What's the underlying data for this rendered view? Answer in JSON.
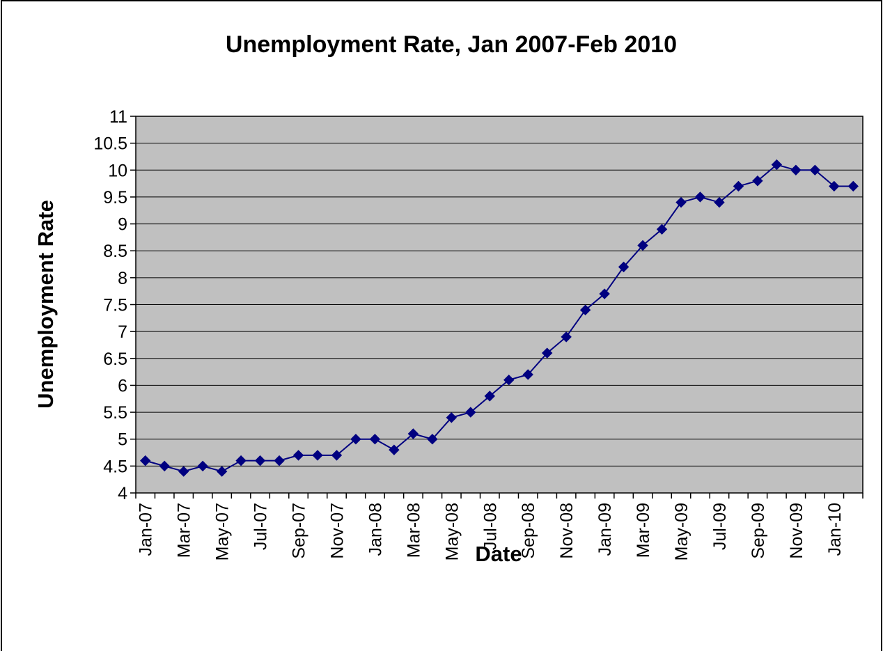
{
  "chart_data": {
    "type": "line",
    "title": "Unemployment Rate, Jan 2007-Feb 2010",
    "xlabel": "Date",
    "ylabel": "Unemployment Rate",
    "ylim": [
      4,
      11
    ],
    "yticks": [
      "4",
      "4.5",
      "5",
      "5.5",
      "6",
      "6.5",
      "7",
      "7.5",
      "8",
      "8.5",
      "9",
      "9.5",
      "10",
      "10.5",
      "11"
    ],
    "grid": true,
    "legend": "none",
    "colors": {
      "line": "#000080",
      "marker": "#000080",
      "plot_bg": "#C0C0C0",
      "grid": "#000000"
    },
    "x_tick_labels": [
      "Jan-07",
      "Mar-07",
      "May-07",
      "Jul-07",
      "Sep-07",
      "Nov-07",
      "Jan-08",
      "Mar-08",
      "May-08",
      "Jul-08",
      "Sep-08",
      "Nov-08",
      "Jan-09",
      "Mar-09",
      "May-09",
      "Jul-09",
      "Sep-09",
      "Nov-09",
      "Jan-10"
    ],
    "x": [
      "Jan-07",
      "Feb-07",
      "Mar-07",
      "Apr-07",
      "May-07",
      "Jun-07",
      "Jul-07",
      "Aug-07",
      "Sep-07",
      "Oct-07",
      "Nov-07",
      "Dec-07",
      "Jan-08",
      "Feb-08",
      "Mar-08",
      "Apr-08",
      "May-08",
      "Jun-08",
      "Jul-08",
      "Aug-08",
      "Sep-08",
      "Oct-08",
      "Nov-08",
      "Dec-08",
      "Jan-09",
      "Feb-09",
      "Mar-09",
      "Apr-09",
      "May-09",
      "Jun-09",
      "Jul-09",
      "Aug-09",
      "Sep-09",
      "Oct-09",
      "Nov-09",
      "Dec-09",
      "Jan-10",
      "Feb-10"
    ],
    "series": [
      {
        "values": [
          4.6,
          4.5,
          4.4,
          4.5,
          4.4,
          4.6,
          4.6,
          4.6,
          4.7,
          4.7,
          4.7,
          5.0,
          5.0,
          4.8,
          5.1,
          5.0,
          5.4,
          5.5,
          5.8,
          6.1,
          6.2,
          6.6,
          6.9,
          7.4,
          7.7,
          8.2,
          8.6,
          8.9,
          9.4,
          9.5,
          9.4,
          9.7,
          9.8,
          10.1,
          10.0,
          10.0,
          9.7,
          9.7
        ]
      }
    ]
  }
}
